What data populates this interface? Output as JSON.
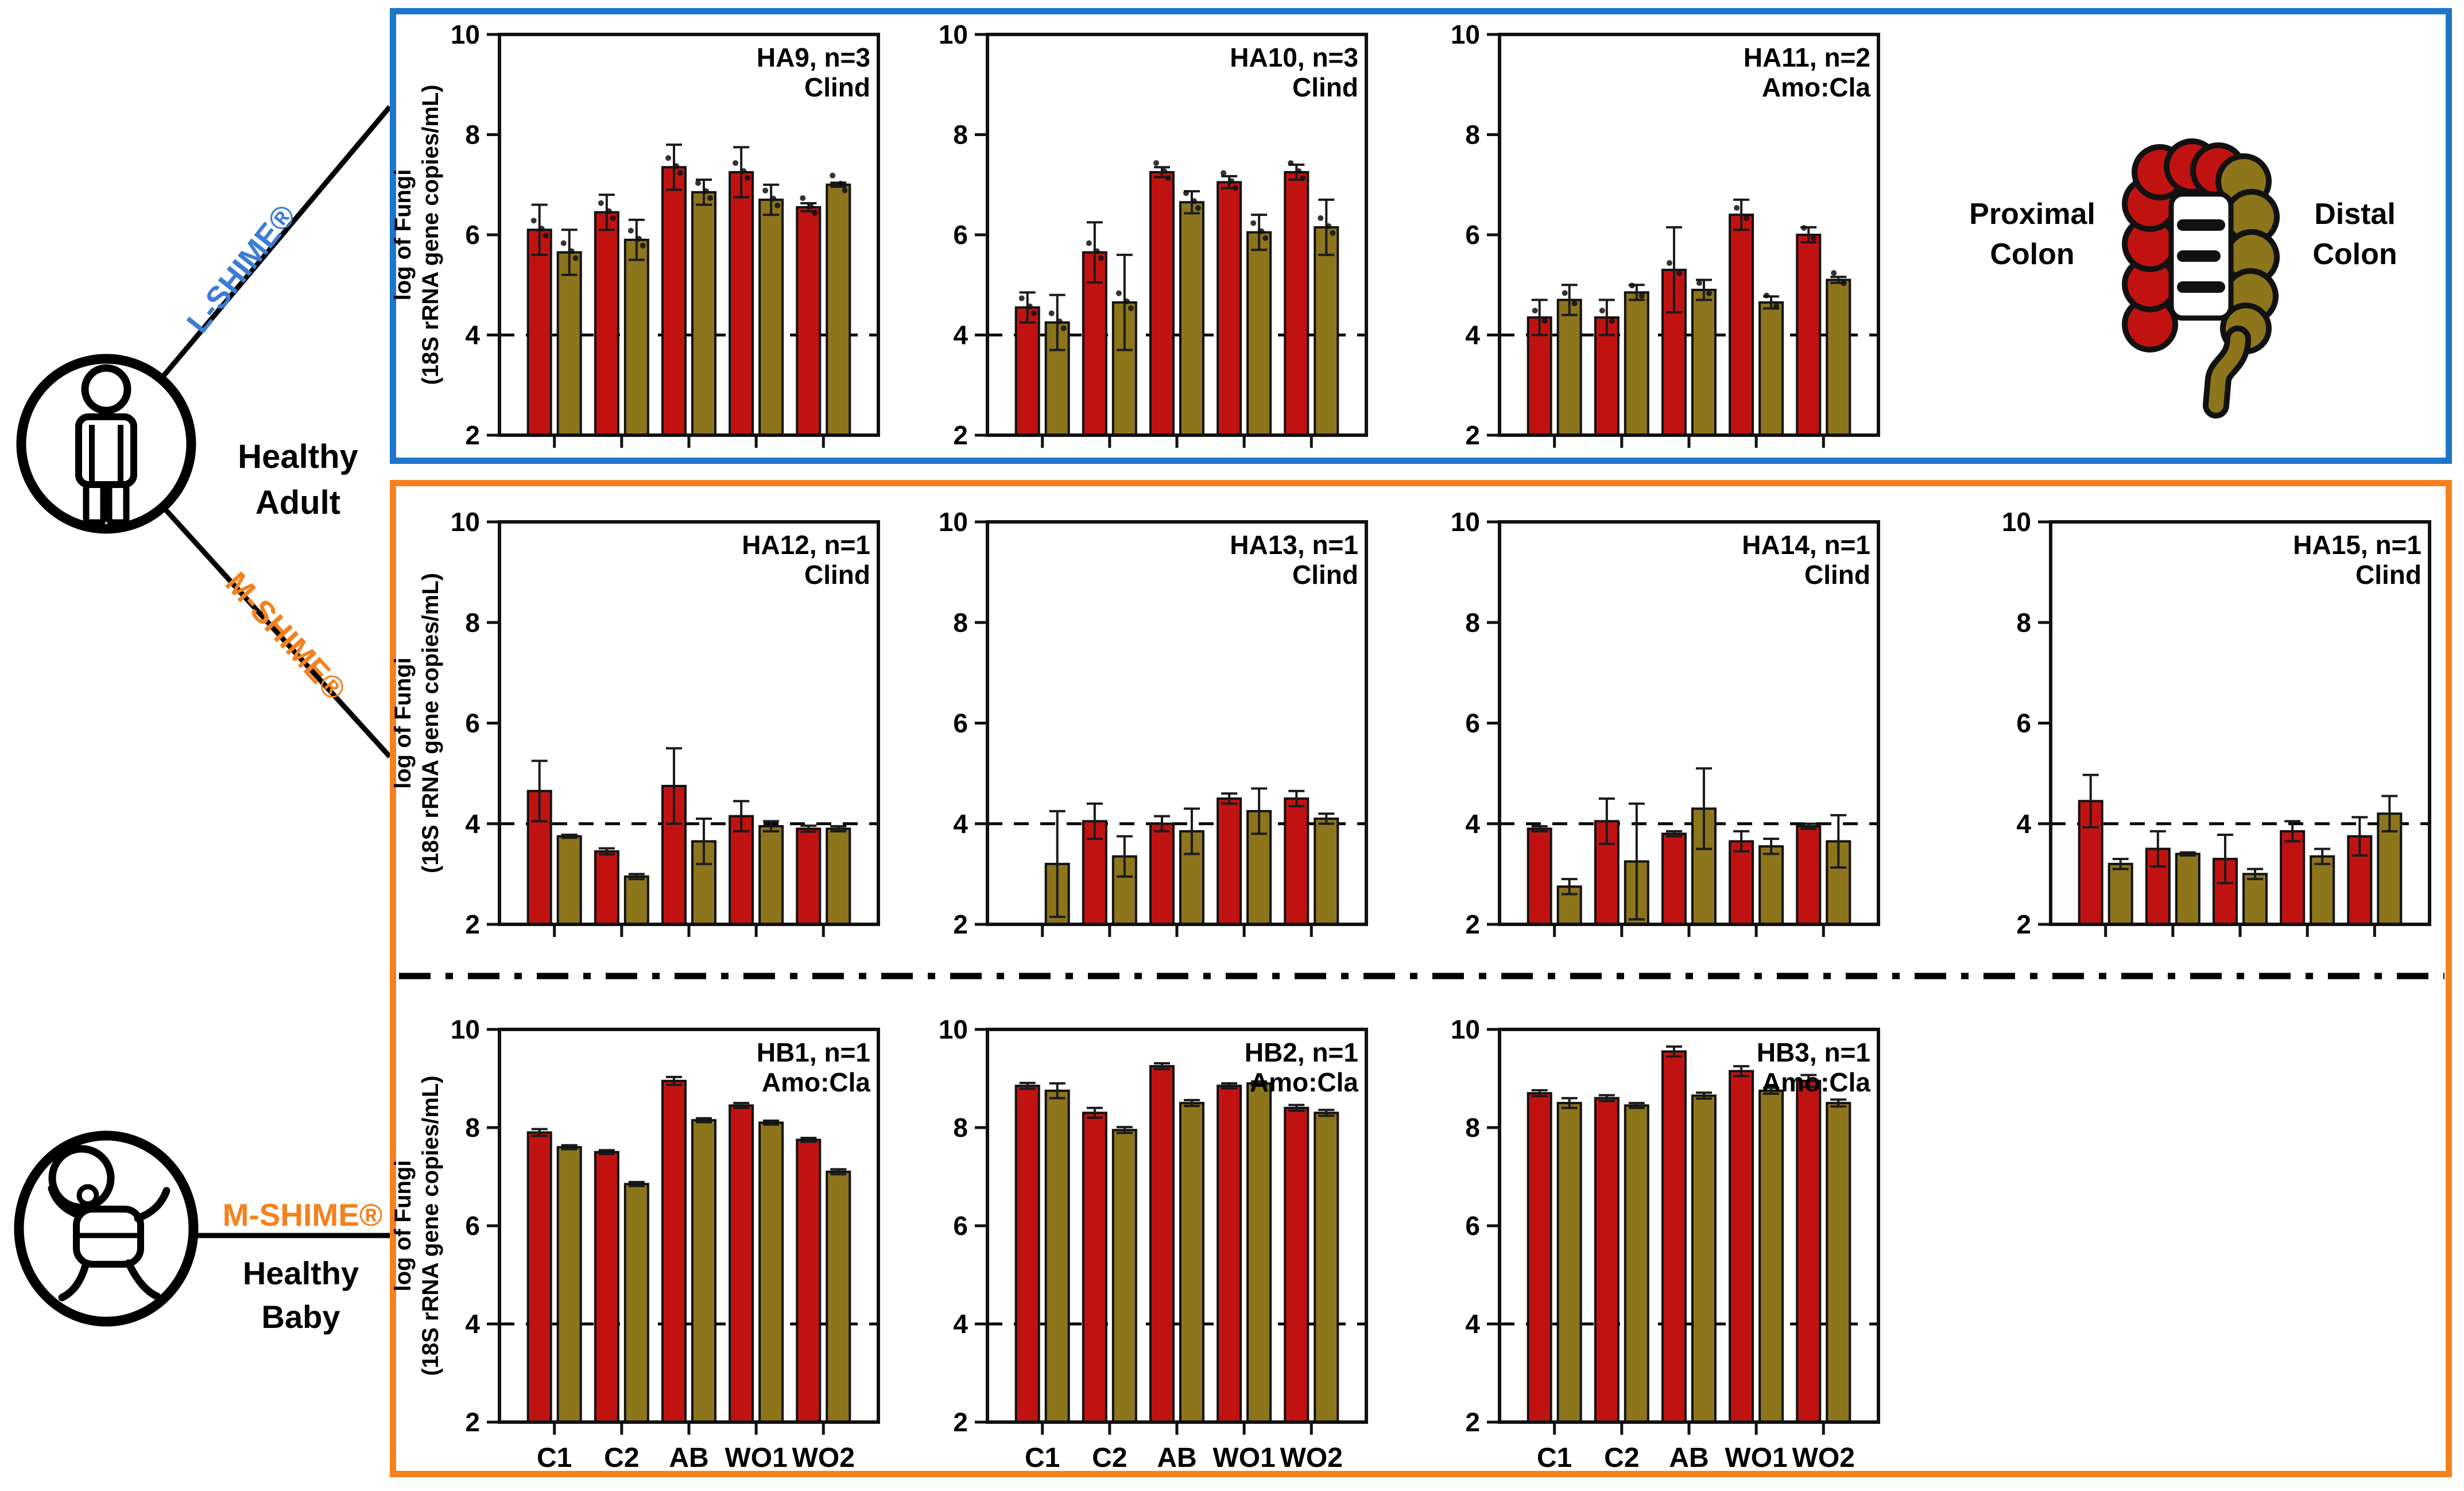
{
  "figure": {
    "description_colors": {
      "proximal_red": "#C11212",
      "distal_olive": "#8D751C",
      "lshime_box_blue": "#1E76C8",
      "mshime_box_orange": "#F5811E",
      "lshime_text_blue": "#3D7CD4",
      "mshime_text_orange": "#F5811E"
    }
  },
  "annotations": {
    "l_shime": "L-SHIME®",
    "m_shime_adult": "M-SHIME®",
    "m_shime_baby": "M-SHIME®",
    "adult_line1": "Healthy",
    "adult_line2": "Adult",
    "baby_line1": "Healthy",
    "baby_line2": "Baby"
  },
  "colon_legend": {
    "proximal_line1": "Proximal",
    "proximal_line2": "Colon",
    "distal_line1": "Distal",
    "distal_line2": "Colon"
  },
  "axis": {
    "ylabel_line1": "log of Fungi",
    "ylabel_line2": "(18S rRNA gene copies/mL)",
    "ylim": [
      2,
      10
    ],
    "yticks": [
      10,
      8,
      6,
      4,
      2
    ],
    "ref_line": 4,
    "categories": [
      "C1",
      "C2",
      "AB",
      "WO1",
      "WO2"
    ]
  },
  "series_meta": [
    {
      "key": "proximal",
      "name": "Proximal Colon",
      "color": "#C11212"
    },
    {
      "key": "distal",
      "name": "Distal Colon",
      "color": "#8D751C"
    }
  ],
  "chart_data": [
    {
      "id": "HA9",
      "type": "bar",
      "title": "HA9, n=3",
      "subtitle": "Clind",
      "row": 0,
      "col": 0,
      "n_dots": 3,
      "proximal": {
        "values": [
          6.1,
          6.45,
          7.35,
          7.25,
          6.55
        ],
        "err": [
          0.5,
          0.35,
          0.45,
          0.5,
          0.08
        ]
      },
      "distal": {
        "values": [
          5.65,
          5.9,
          6.85,
          6.7,
          7.0
        ],
        "err": [
          0.45,
          0.4,
          0.25,
          0.3,
          0.04
        ]
      }
    },
    {
      "id": "HA10",
      "type": "bar",
      "title": "HA10, n=3",
      "subtitle": "Clind",
      "row": 0,
      "col": 1,
      "n_dots": 3,
      "proximal": {
        "values": [
          4.55,
          5.65,
          7.25,
          7.05,
          7.25
        ],
        "err": [
          0.3,
          0.6,
          0.1,
          0.12,
          0.15
        ]
      },
      "distal": {
        "values": [
          4.25,
          4.65,
          6.65,
          6.05,
          6.15
        ],
        "err": [
          0.55,
          0.95,
          0.22,
          0.35,
          0.55
        ]
      }
    },
    {
      "id": "HA11",
      "type": "bar",
      "title": "HA11, n=2",
      "subtitle": "Amo:Cla",
      "row": 0,
      "col": 2,
      "n_dots": 2,
      "proximal": {
        "values": [
          4.35,
          4.35,
          5.3,
          6.4,
          6.0
        ],
        "err": [
          0.35,
          0.35,
          0.85,
          0.3,
          0.15
        ]
      },
      "distal": {
        "values": [
          4.7,
          4.85,
          4.9,
          4.65,
          5.1
        ],
        "err": [
          0.3,
          0.15,
          0.2,
          0.12,
          0.06
        ]
      }
    },
    {
      "id": "HA12",
      "type": "bar",
      "title": "HA12, n=1",
      "subtitle": "Clind",
      "row": 1,
      "col": 0,
      "n_dots": 0,
      "proximal": {
        "values": [
          4.65,
          3.45,
          4.75,
          4.15,
          3.9
        ],
        "err": [
          0.6,
          0.06,
          0.75,
          0.3,
          0.06
        ]
      },
      "distal": {
        "values": [
          3.75,
          2.95,
          3.65,
          3.95,
          3.9
        ],
        "err": [
          0.03,
          0.05,
          0.45,
          0.1,
          0.05
        ]
      }
    },
    {
      "id": "HA13",
      "type": "bar",
      "title": "HA13, n=1",
      "subtitle": "Clind",
      "row": 1,
      "col": 1,
      "n_dots": 0,
      "proximal": {
        "values": [
          null,
          4.05,
          4.0,
          4.5,
          4.5
        ],
        "err": [
          0,
          0.35,
          0.15,
          0.1,
          0.15
        ]
      },
      "distal": {
        "values": [
          3.2,
          3.35,
          3.85,
          4.25,
          4.1
        ],
        "err": [
          1.05,
          0.4,
          0.45,
          0.45,
          0.1
        ]
      }
    },
    {
      "id": "HA14",
      "type": "bar",
      "title": "HA14, n=1",
      "subtitle": "Clind",
      "row": 1,
      "col": 2,
      "n_dots": 0,
      "proximal": {
        "values": [
          3.9,
          4.05,
          3.8,
          3.65,
          3.95
        ],
        "err": [
          0.05,
          0.45,
          0.05,
          0.2,
          0.05
        ]
      },
      "distal": {
        "values": [
          2.75,
          3.25,
          4.3,
          3.55,
          3.65
        ],
        "err": [
          0.15,
          1.15,
          0.8,
          0.15,
          0.52
        ]
      }
    },
    {
      "id": "HA15",
      "type": "bar",
      "title": "HA15, n=1",
      "subtitle": "Clind",
      "row": 1,
      "col": 3,
      "n_dots": 0,
      "proximal": {
        "values": [
          4.45,
          3.5,
          3.3,
          3.85,
          3.75
        ],
        "err": [
          0.52,
          0.35,
          0.48,
          0.2,
          0.38
        ]
      },
      "distal": {
        "values": [
          3.2,
          3.4,
          3.0,
          3.35,
          4.2
        ],
        "err": [
          0.1,
          0.03,
          0.1,
          0.15,
          0.35
        ]
      }
    },
    {
      "id": "HB1",
      "type": "bar",
      "title": "HB1, n=1",
      "subtitle": "Amo:Cla",
      "row": 2,
      "col": 0,
      "n_dots": 0,
      "proximal": {
        "values": [
          7.9,
          7.5,
          8.95,
          8.45,
          7.75
        ],
        "err": [
          0.07,
          0.04,
          0.08,
          0.05,
          0.04
        ]
      },
      "distal": {
        "values": [
          7.6,
          6.85,
          8.15,
          8.1,
          7.1
        ],
        "err": [
          0.04,
          0.04,
          0.04,
          0.04,
          0.05
        ]
      }
    },
    {
      "id": "HB2",
      "type": "bar",
      "title": "HB2, n=1",
      "subtitle": "Amo:Cla",
      "row": 2,
      "col": 1,
      "n_dots": 0,
      "proximal": {
        "values": [
          8.85,
          8.3,
          9.25,
          8.85,
          8.4
        ],
        "err": [
          0.06,
          0.1,
          0.06,
          0.05,
          0.06
        ]
      },
      "distal": {
        "values": [
          8.75,
          7.95,
          8.5,
          8.9,
          8.3
        ],
        "err": [
          0.15,
          0.06,
          0.06,
          0.04,
          0.06
        ]
      }
    },
    {
      "id": "HB3",
      "type": "bar",
      "title": "HB3, n=1",
      "subtitle": "Amo:Cla",
      "row": 2,
      "col": 2,
      "n_dots": 0,
      "proximal": {
        "values": [
          8.7,
          8.6,
          9.55,
          9.15,
          8.95
        ],
        "err": [
          0.06,
          0.06,
          0.1,
          0.1,
          0.12
        ]
      },
      "distal": {
        "values": [
          8.5,
          8.45,
          8.65,
          8.75,
          8.5
        ],
        "err": [
          0.1,
          0.05,
          0.06,
          0.06,
          0.07
        ]
      }
    }
  ]
}
